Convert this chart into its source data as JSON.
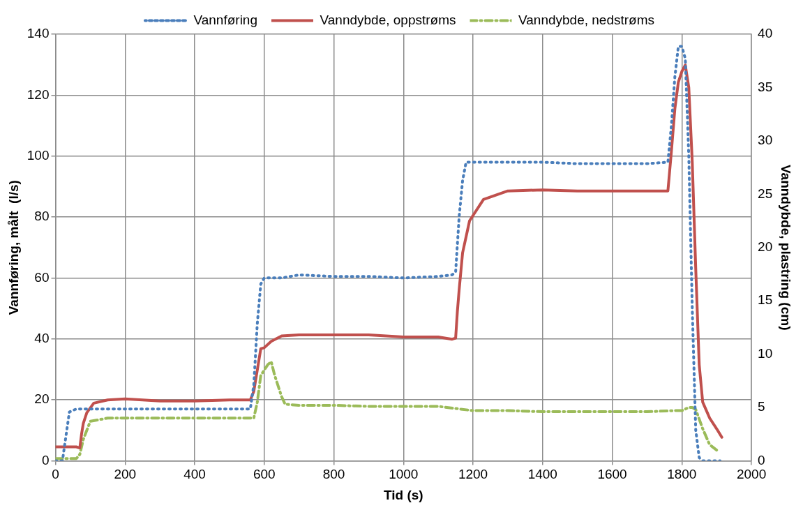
{
  "chart_data": {
    "type": "line",
    "xlabel": "Tid (s)",
    "ylabel": "Vannføring, målt  (l/s)",
    "y2label": "Vanndybde, plastring (cm)",
    "xlim": [
      0,
      2000
    ],
    "xticks": [
      0,
      200,
      400,
      600,
      800,
      1000,
      1200,
      1400,
      1600,
      1800,
      2000
    ],
    "ylim": [
      0,
      140
    ],
    "yticks": [
      0,
      20,
      40,
      60,
      80,
      100,
      120,
      140
    ],
    "y2lim": [
      0,
      40
    ],
    "y2ticks": [
      0,
      5,
      10,
      15,
      20,
      25,
      30,
      35,
      40
    ],
    "grid": true,
    "legend": "top",
    "marker": "none",
    "series": [
      {
        "name": "Vannføring",
        "color": "#4a7ebb",
        "line_style": "dotted",
        "x": [
          0,
          20,
          30,
          40,
          60,
          100,
          200,
          300,
          400,
          500,
          560,
          570,
          580,
          590,
          600,
          650,
          700,
          800,
          900,
          1000,
          1100,
          1140,
          1150,
          1160,
          1170,
          1180,
          1200,
          1300,
          1400,
          1500,
          1600,
          1700,
          1760,
          1770,
          1780,
          1790,
          1800,
          1810,
          1820,
          1830,
          1840,
          1850,
          1860,
          1900,
          1910
        ],
        "values": [
          0,
          0,
          8,
          16,
          17,
          17,
          17,
          17,
          17,
          17,
          17,
          25,
          45,
          58,
          60,
          60,
          61,
          60.5,
          60.5,
          60,
          60.5,
          61,
          62,
          80,
          92,
          98,
          98,
          98,
          98,
          97.5,
          97.5,
          97.5,
          98,
          110,
          126,
          136,
          136,
          132,
          100,
          50,
          10,
          1,
          0,
          0,
          0
        ]
      },
      {
        "name": "Vanndybde, oppstrøms",
        "color": "#c0504d",
        "line_style": "solid",
        "axis": "y2",
        "x": [
          0,
          60,
          70,
          75,
          80,
          90,
          110,
          150,
          200,
          300,
          400,
          500,
          560,
          570,
          580,
          590,
          600,
          620,
          650,
          700,
          800,
          900,
          1000,
          1100,
          1140,
          1150,
          1155,
          1160,
          1170,
          1190,
          1230,
          1300,
          1400,
          1500,
          1600,
          1700,
          1760,
          1770,
          1780,
          1790,
          1800,
          1810,
          1820,
          1830,
          1840,
          1850,
          1860,
          1880,
          1900,
          1915
        ],
        "values": [
          1.3,
          1.3,
          1.2,
          2.5,
          3.5,
          4.5,
          5.4,
          5.7,
          5.8,
          5.6,
          5.6,
          5.7,
          5.7,
          6.5,
          8.5,
          10.5,
          10.6,
          11.2,
          11.7,
          11.8,
          11.8,
          11.8,
          11.6,
          11.6,
          11.4,
          11.5,
          14,
          16,
          19.5,
          22.5,
          24.5,
          25.3,
          25.4,
          25.3,
          25.3,
          25.3,
          25.3,
          29,
          33,
          35.5,
          36.5,
          37.1,
          35,
          28,
          18,
          9,
          5.5,
          4,
          3,
          2.2
        ]
      },
      {
        "name": "Vanndybde, nedstrøms",
        "color": "#9bbb59",
        "line_style": "dashed",
        "axis": "y2",
        "x": [
          0,
          50,
          60,
          70,
          80,
          100,
          150,
          200,
          300,
          400,
          500,
          560,
          570,
          580,
          590,
          600,
          610,
          620,
          630,
          650,
          660,
          700,
          800,
          900,
          1000,
          1100,
          1150,
          1200,
          1300,
          1400,
          1500,
          1600,
          1700,
          1780,
          1800,
          1820,
          1830,
          1840,
          1860,
          1880,
          1900
        ],
        "values": [
          0.2,
          0.2,
          0.2,
          0.6,
          2,
          3.7,
          4,
          4,
          4,
          4,
          4,
          4,
          4,
          5.5,
          8,
          8.5,
          9,
          9.3,
          8,
          6,
          5.3,
          5.2,
          5.2,
          5.1,
          5.1,
          5.1,
          4.9,
          4.7,
          4.7,
          4.6,
          4.6,
          4.6,
          4.6,
          4.7,
          4.7,
          5,
          5,
          4.8,
          3,
          1.5,
          1
        ]
      }
    ]
  }
}
